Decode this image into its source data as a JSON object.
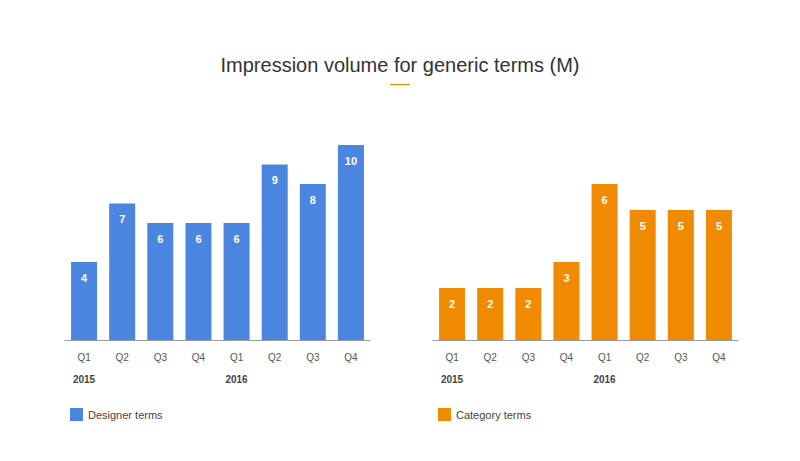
{
  "chart_data": [
    {
      "type": "bar",
      "title": "Impression volume for generic terms (M)",
      "categories": [
        "Q1",
        "Q2",
        "Q3",
        "Q4",
        "Q1",
        "Q2",
        "Q3",
        "Q4"
      ],
      "year_labels": [
        "2015",
        null,
        null,
        null,
        "2016",
        null,
        null,
        null
      ],
      "series": [
        {
          "name": "Designer terms",
          "color": "#4a86e0",
          "values": [
            4,
            7,
            6,
            6,
            6,
            9,
            8,
            10
          ]
        }
      ],
      "ylim": [
        0,
        10
      ],
      "grid": false,
      "data_labels": true,
      "tick_labels": "x",
      "legend": "bottom-left"
    },
    {
      "type": "bar",
      "categories": [
        "Q1",
        "Q2",
        "Q3",
        "Q4",
        "Q1",
        "Q2",
        "Q3",
        "Q4"
      ],
      "year_labels": [
        "2015",
        null,
        null,
        null,
        "2016",
        null,
        null,
        null
      ],
      "series": [
        {
          "name": "Category terms",
          "color": "#f08a00",
          "values": [
            2,
            2,
            2,
            3,
            6,
            5,
            5,
            5
          ]
        }
      ],
      "ylim": [
        0,
        7.5
      ],
      "grid": false,
      "data_labels": true,
      "tick_labels": "x",
      "legend": "bottom-left"
    }
  ]
}
